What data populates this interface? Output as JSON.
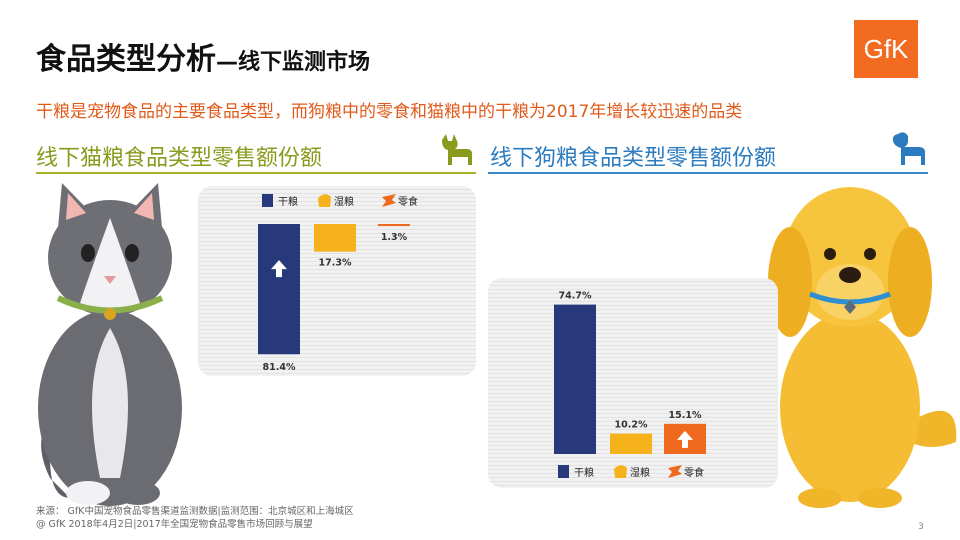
{
  "page": {
    "title": "食品类型分析",
    "title_sub": "—线下监测市场",
    "logo": "GfK",
    "headline": "干粮是宠物食品的主要食品类型，而狗粮中的零食和猫粮中的干粮为2017年增长较迅速的品类",
    "footer_line1": "来源： GfK中国宠物食品零售渠道监测数据|监测范围：北京城区和上海城区",
    "footer_line2": "@ GfK 2018年4月2日|2017年全国宠物食品零售市场回顾与展望",
    "page_number": "3"
  },
  "icons": {
    "cat": "cat-silhouette-icon",
    "dog": "dog-silhouette-icon",
    "dry": "dry-food-icon",
    "wet": "wet-food-icon",
    "snack": "snack-icon",
    "growth": "up-arrow-icon"
  },
  "chart_data": [
    {
      "type": "bar",
      "title": "线下猫粮食品类型零售额份额",
      "categories": [
        "干粮",
        "湿粮",
        "零食"
      ],
      "values": [
        81.4,
        17.3,
        1.3
      ],
      "value_labels": [
        "81.4%",
        "17.3%",
        "1.3%"
      ],
      "colors": [
        "#27397a",
        "#f5b21b",
        "#ef6a1f"
      ],
      "growth_highlight": "干粮",
      "layout": "waterfall",
      "legend": "top"
    },
    {
      "type": "bar",
      "title": "线下狗粮食品类型零售额份额",
      "categories": [
        "干粮",
        "湿粮",
        "零食"
      ],
      "values": [
        74.7,
        10.2,
        15.1
      ],
      "value_labels": [
        "74.7%",
        "10.2%",
        "15.1%"
      ],
      "colors": [
        "#27397a",
        "#f5b21b",
        "#ef6a1f"
      ],
      "growth_highlight": "零食",
      "layout": "grouped",
      "legend": "bottom"
    }
  ]
}
